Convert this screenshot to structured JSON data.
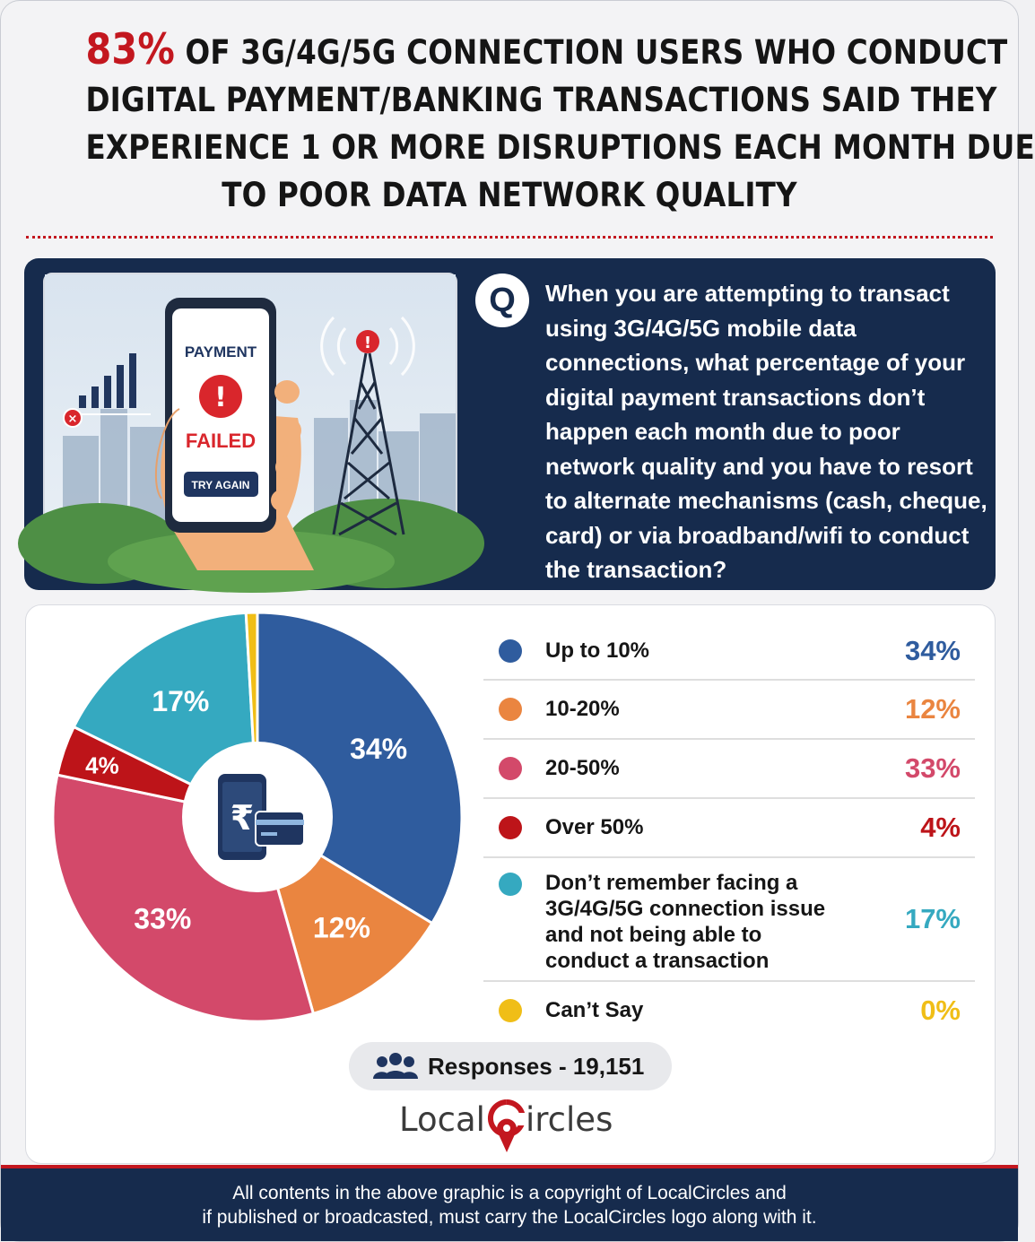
{
  "headline": {
    "highlight": "83%",
    "line1_rest": " OF 3G/4G/5G CONNECTION USERS WHO CONDUCT",
    "line2": "DIGITAL PAYMENT/BANKING TRANSACTIONS SAID THEY",
    "line3": "EXPERIENCE 1 OR MORE DISRUPTIONS EACH MONTH DUE",
    "line4": "TO POOR DATA NETWORK QUALITY"
  },
  "illustration": {
    "phone_title": "PAYMENT",
    "phone_status": "FAILED",
    "phone_button": "TRY AGAIN"
  },
  "question": {
    "badge": "Q",
    "text": "When you are attempting to transact using 3G/4G/5G mobile data connections, what percentage of your digital payment transactions don’t happen each month due to poor network quality and you have to resort to alternate mechanisms (cash, cheque, card) or via broadband/wifi to conduct the transaction?"
  },
  "chart_data": {
    "type": "pie",
    "categories": [
      "Up to 10%",
      "10-20%",
      "20-50%",
      "Over 50%",
      "Don’t remember facing a 3G/4G/5G connection issue and not being able to conduct a transaction",
      "Can’t Say"
    ],
    "values": [
      34,
      12,
      33,
      4,
      17,
      0
    ],
    "value_labels": [
      "34%",
      "12%",
      "33%",
      "4%",
      "17%",
      "0%"
    ],
    "colors": [
      "#2f5c9e",
      "#ea8540",
      "#d3496a",
      "#bd1419",
      "#35a9c0",
      "#f0be17"
    ],
    "center_icon": "rupee-phone-card-icon",
    "legend_position": "right"
  },
  "responses": {
    "label": "Responses - 19,151",
    "icon": "people-icon"
  },
  "logo": {
    "part1": "Local",
    "part2": "ircles",
    "icon": "location-pin-c-icon"
  },
  "footer": {
    "line1": "All contents in the above graphic is a copyright of LocalCircles and",
    "line2": "if published or broadcasted, must carry the LocalCircles logo along with it."
  }
}
